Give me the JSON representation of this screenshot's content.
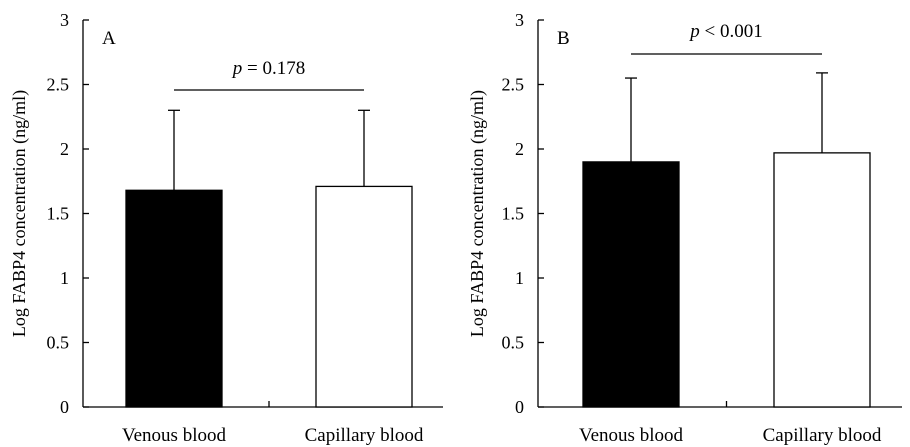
{
  "chart_data": [
    {
      "type": "bar",
      "panel_label": "A",
      "categories": [
        "Venous blood",
        "Capillary blood"
      ],
      "values": [
        1.68,
        1.71
      ],
      "error_upper": [
        2.3,
        2.3
      ],
      "bar_fill": [
        "#000000",
        "#ffffff"
      ],
      "ylabel": "Log FABP4 concentration (ng/ml)",
      "ylim": [
        0,
        3
      ],
      "yticks": [
        "0",
        "0.5",
        "1",
        "1.5",
        "2",
        "2.5",
        "3"
      ],
      "annotation": {
        "p_symbol": "p",
        "p_text": " = 0.178"
      },
      "grid": false
    },
    {
      "type": "bar",
      "panel_label": "B",
      "categories": [
        "Venous blood",
        "Capillary blood"
      ],
      "values": [
        1.9,
        1.97
      ],
      "error_upper": [
        2.55,
        2.59
      ],
      "bar_fill": [
        "#000000",
        "#ffffff"
      ],
      "ylabel": "Log FABP4 concentration (ng/ml)",
      "ylim": [
        0,
        3
      ],
      "yticks": [
        "0",
        "0.5",
        "1",
        "1.5",
        "2",
        "2.5",
        "3"
      ],
      "annotation": {
        "p_symbol": "p",
        "p_text": " < 0.001"
      },
      "grid": false
    }
  ]
}
